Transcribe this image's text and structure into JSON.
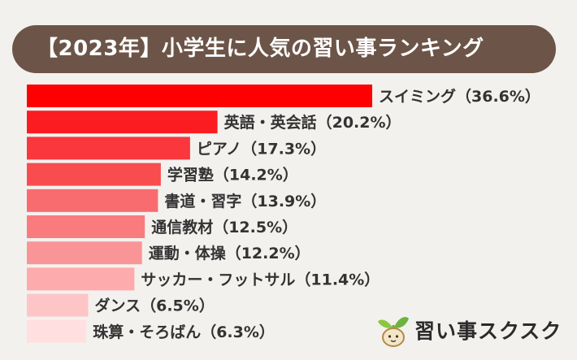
{
  "title": "【2023年】小学生に人気の習い事ランキング",
  "brand": {
    "name": "習い事スクスク",
    "icon": "sprout-mascot-icon"
  },
  "colors": {
    "background": "#f3f1ee",
    "title_bg": "#6c5548",
    "title_text": "#ffffff",
    "bars": [
      "#ff0000",
      "#fa1c20",
      "#f9373c",
      "#f84c4f",
      "#f86c6f",
      "#fa7b7e",
      "#fa9597",
      "#fdabac",
      "#fec5c7",
      "#ffdfe0"
    ]
  },
  "chart_data": {
    "type": "bar",
    "orientation": "horizontal",
    "title": "【2023年】小学生に人気の習い事ランキング",
    "unit": "%",
    "xlim": [
      0,
      36.6
    ],
    "categories": [
      "スイミング",
      "英語・英会話",
      "ピアノ",
      "学習塾",
      "書道・習字",
      "通信教材",
      "運動・体操",
      "サッカー・フットサル",
      "ダンス",
      "珠算・そろばん"
    ],
    "values": [
      36.6,
      20.2,
      17.3,
      14.2,
      13.9,
      12.5,
      12.2,
      11.4,
      6.5,
      6.3
    ],
    "labels": [
      "スイミング（36.6%）",
      "英語・英会話（20.2%）",
      "ピアノ（17.3%）",
      "学習塾（14.2%）",
      "書道・習字（13.9%）",
      "通信教材（12.5%）",
      "運動・体操（12.2%）",
      "サッカー・フットサル（11.4%）",
      "ダンス（6.5%）",
      "珠算・そろばん（6.3%）"
    ]
  }
}
